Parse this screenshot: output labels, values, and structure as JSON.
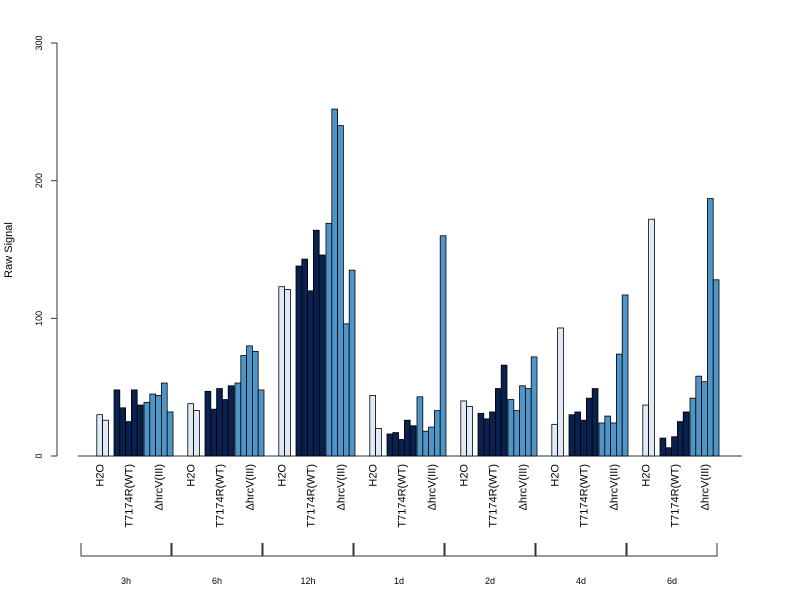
{
  "chart_data": {
    "type": "bar",
    "ylabel": "Raw Signal",
    "xlabel": "",
    "ylim": [
      0,
      300
    ],
    "yticks": [
      0,
      100,
      200,
      300
    ],
    "grid": false,
    "conditions": [
      {
        "name": "H2O",
        "color": "#deebf7"
      },
      {
        "name": "T7174R(WT)",
        "color": "#08214f"
      },
      {
        "name": "ΔhrcV(III)",
        "color": "#4f95c7"
      }
    ],
    "timepoints": [
      {
        "label": "3h",
        "values": [
          [
            0,
            30,
            26
          ],
          [
            48,
            35,
            25,
            48,
            37
          ],
          [
            39,
            45,
            44,
            53,
            32
          ]
        ]
      },
      {
        "label": "6h",
        "values": [
          [
            0,
            38,
            33
          ],
          [
            47,
            34,
            49,
            41,
            51
          ],
          [
            53,
            73,
            80,
            76,
            48
          ]
        ]
      },
      {
        "label": "12h",
        "values": [
          [
            0,
            123,
            121
          ],
          [
            138,
            143,
            120,
            164,
            146
          ],
          [
            169,
            252,
            240,
            96,
            135
          ]
        ]
      },
      {
        "label": "1d",
        "values": [
          [
            0,
            44,
            20
          ],
          [
            16,
            17,
            12,
            26,
            22
          ],
          [
            43,
            18,
            21,
            33,
            160
          ]
        ]
      },
      {
        "label": "2d",
        "values": [
          [
            0,
            40,
            36
          ],
          [
            31,
            27,
            32,
            49,
            66
          ],
          [
            41,
            33,
            51,
            49,
            72
          ]
        ]
      },
      {
        "label": "4d",
        "values": [
          [
            0,
            23,
            93
          ],
          [
            30,
            32,
            26,
            42,
            49
          ],
          [
            24,
            29,
            24,
            74,
            117
          ]
        ]
      },
      {
        "label": "6d",
        "values": [
          [
            0,
            37,
            172
          ],
          [
            13,
            6,
            14,
            25,
            32
          ],
          [
            42,
            58,
            54,
            187,
            128
          ]
        ]
      }
    ]
  }
}
